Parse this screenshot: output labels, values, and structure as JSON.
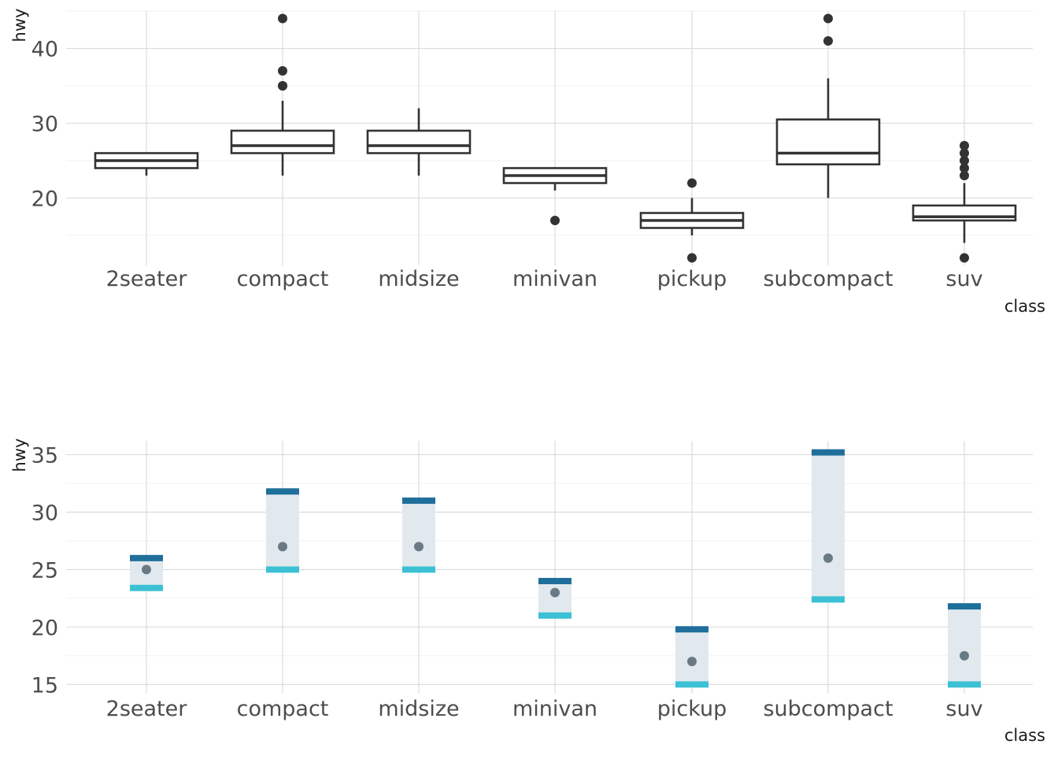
{
  "chart_data": [
    {
      "type": "boxplot",
      "title": "",
      "xlabel": "class",
      "ylabel": "hwy",
      "ylim": [
        11,
        45
      ],
      "yticks": [
        20,
        30,
        40
      ],
      "categories": [
        "2seater",
        "compact",
        "midsize",
        "minivan",
        "pickup",
        "subcompact",
        "suv"
      ],
      "boxes": [
        {
          "category": "2seater",
          "lower_whisker": 23,
          "q1": 24,
          "median": 25,
          "q3": 26,
          "upper_whisker": 26,
          "outliers": []
        },
        {
          "category": "compact",
          "lower_whisker": 23,
          "q1": 26,
          "median": 27,
          "q3": 29,
          "upper_whisker": 33,
          "outliers": [
            35,
            35,
            37,
            44
          ]
        },
        {
          "category": "midsize",
          "lower_whisker": 23,
          "q1": 26,
          "median": 27,
          "q3": 29,
          "upper_whisker": 32,
          "outliers": []
        },
        {
          "category": "minivan",
          "lower_whisker": 21,
          "q1": 22,
          "median": 23,
          "q3": 24,
          "upper_whisker": 24,
          "outliers": [
            17
          ]
        },
        {
          "category": "pickup",
          "lower_whisker": 15,
          "q1": 16,
          "median": 17,
          "q3": 18,
          "upper_whisker": 20,
          "outliers": [
            12,
            22
          ]
        },
        {
          "category": "subcompact",
          "lower_whisker": 20,
          "q1": 24.5,
          "median": 26,
          "q3": 30.5,
          "upper_whisker": 36,
          "outliers": [
            41,
            44
          ]
        },
        {
          "category": "suv",
          "lower_whisker": 14,
          "q1": 17,
          "median": 17.5,
          "q3": 19,
          "upper_whisker": 22,
          "outliers": [
            12,
            23,
            24,
            25,
            26,
            27
          ]
        }
      ]
    },
    {
      "type": "interval",
      "title": "",
      "xlabel": "class",
      "ylabel": "hwy",
      "ylim": [
        14.2,
        36.2
      ],
      "yticks": [
        15,
        20,
        25,
        30,
        35
      ],
      "categories": [
        "2seater",
        "compact",
        "midsize",
        "minivan",
        "pickup",
        "subcompact",
        "suv"
      ],
      "intervals": [
        {
          "category": "2seater",
          "mean": 25,
          "lower": 23.4,
          "upper": 26
        },
        {
          "category": "compact",
          "mean": 27,
          "lower": 25,
          "upper": 31.8
        },
        {
          "category": "midsize",
          "mean": 27,
          "lower": 25,
          "upper": 31
        },
        {
          "category": "minivan",
          "mean": 23,
          "lower": 21,
          "upper": 24
        },
        {
          "category": "pickup",
          "mean": 17,
          "lower": 15,
          "upper": 19.8
        },
        {
          "category": "subcompact",
          "mean": 26,
          "lower": 22.4,
          "upper": 35.2
        },
        {
          "category": "suv",
          "mean": 17.5,
          "lower": 15,
          "upper": 21.8
        }
      ],
      "colors": {
        "upper": "#1f6f9c",
        "lower": "#3cc1d4",
        "band": "#e1e9ee",
        "mean": "#6a7a85"
      }
    }
  ]
}
